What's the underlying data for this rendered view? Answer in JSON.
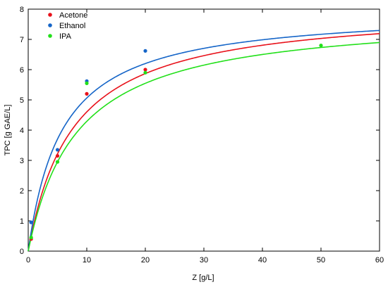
{
  "chart_data": {
    "type": "scatter",
    "xlabel": "Z [g/L]",
    "ylabel": "TPC [g GAE/L]",
    "xlim": [
      0,
      60
    ],
    "ylim": [
      0,
      8
    ],
    "x_ticks": [
      "0",
      "10",
      "20",
      "30",
      "40",
      "50",
      "60"
    ],
    "y_ticks": [
      "0",
      "1",
      "2",
      "3",
      "4",
      "5",
      "6",
      "7",
      "8"
    ],
    "grid": false,
    "legend_position": "top-left",
    "series": [
      {
        "name": "Acetone",
        "color": "#e8111a",
        "points": [
          [
            0.5,
            0.4
          ],
          [
            5,
            3.15
          ],
          [
            10,
            5.2
          ],
          [
            20,
            6.0
          ]
        ],
        "fit_curve": {
          "vmax": 8.1,
          "k": 7.6
        }
      },
      {
        "name": "Ethanol",
        "color": "#1565c8",
        "points": [
          [
            0.5,
            0.95
          ],
          [
            5,
            3.35
          ],
          [
            10,
            5.62
          ],
          [
            20,
            6.62
          ]
        ],
        "fit_curve": {
          "vmax": 8.0,
          "k": 5.8
        }
      },
      {
        "name": "IPA",
        "color": "#22e01a",
        "points": [
          [
            0.5,
            0.45
          ],
          [
            5,
            2.95
          ],
          [
            10,
            5.55
          ],
          [
            20,
            5.9
          ],
          [
            50,
            6.8
          ]
        ],
        "fit_curve": {
          "vmax": 7.85,
          "k": 8.3
        }
      }
    ]
  }
}
